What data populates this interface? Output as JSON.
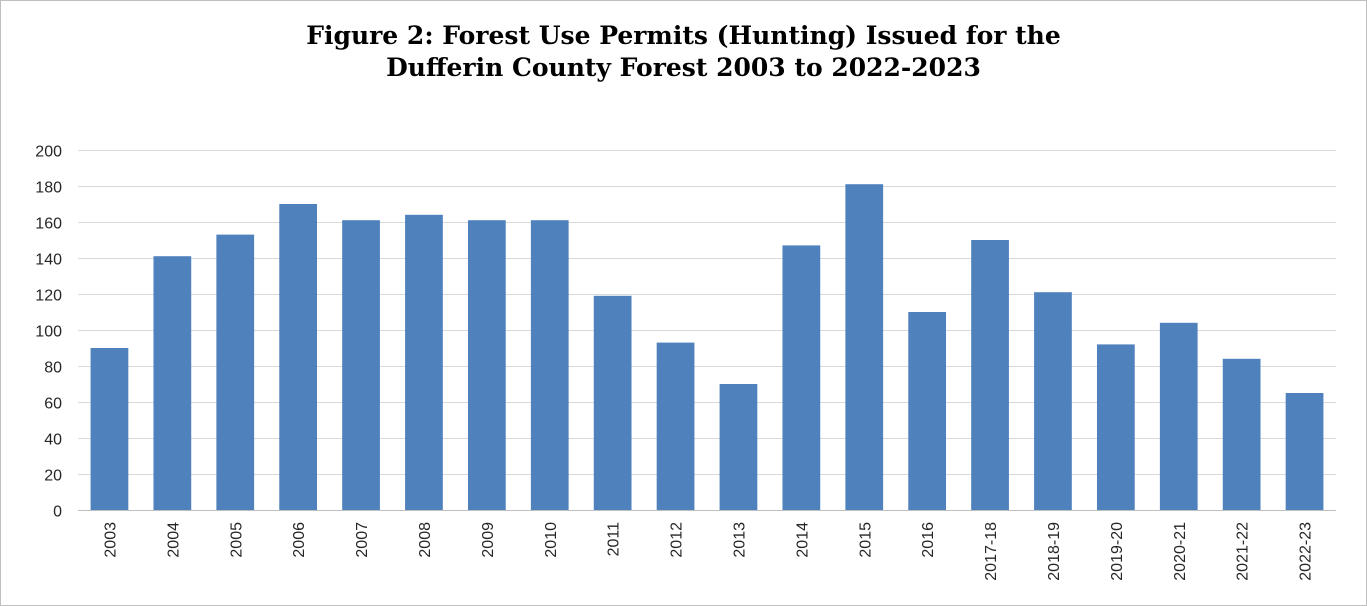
{
  "chart_data": {
    "type": "bar",
    "title_lines": [
      "Figure 2: Forest Use Permits (Hunting) Issued for the",
      "Dufferin County Forest 2003 to 2022-2023"
    ],
    "xlabel": "",
    "ylabel": "",
    "categories": [
      "2003",
      "2004",
      "2005",
      "2006",
      "2007",
      "2008",
      "2009",
      "2010",
      "2011",
      "2012",
      "2013",
      "2014",
      "2015",
      "2016",
      "2017-18",
      "2018-19",
      "2019-20",
      "2020-21",
      "2021-22",
      "2022-23"
    ],
    "values": [
      90,
      141,
      153,
      170,
      161,
      164,
      161,
      161,
      119,
      93,
      70,
      147,
      181,
      110,
      150,
      121,
      92,
      104,
      84,
      65
    ],
    "ylim": [
      0,
      200
    ],
    "yticks": [
      0,
      20,
      40,
      60,
      80,
      100,
      120,
      140,
      160,
      180,
      200
    ],
    "grid": true,
    "legend": "none",
    "bar_color": "#4f81bd",
    "grid_color": "#d9d9d9",
    "axis_color": "#bfbfbf"
  }
}
